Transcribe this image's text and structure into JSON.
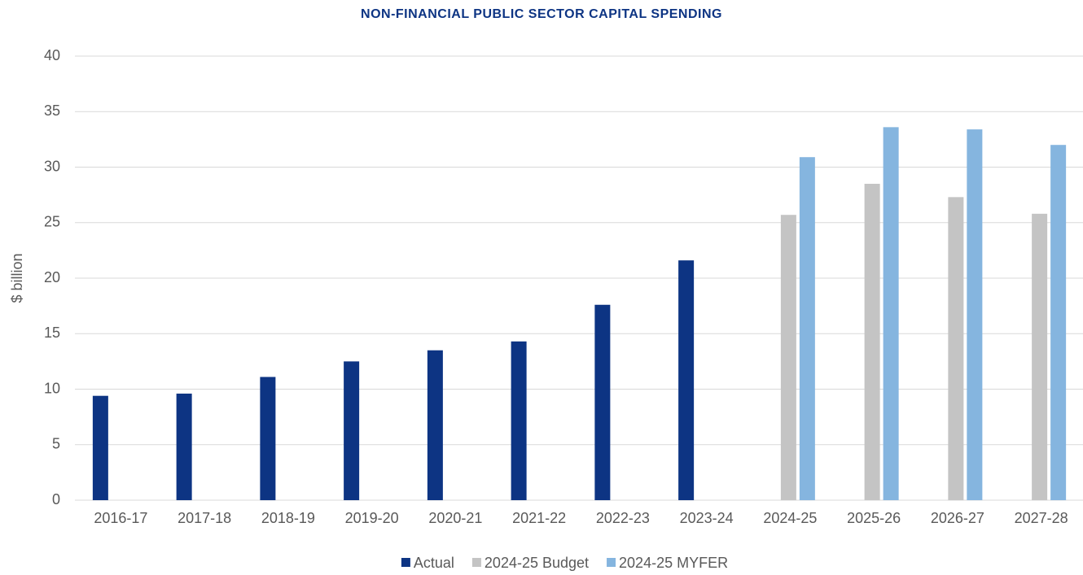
{
  "chart_data": {
    "type": "bar",
    "title": "NON-FINANCIAL PUBLIC SECTOR CAPITAL SPENDING",
    "y_label": "$ billion",
    "categories": [
      "2016-17",
      "2017-18",
      "2018-19",
      "2019-20",
      "2020-21",
      "2021-22",
      "2022-23",
      "2023-24",
      "2024-25",
      "2025-26",
      "2026-27",
      "2027-28"
    ],
    "series": [
      {
        "name": "Actual",
        "color": "#0d3483",
        "values": [
          9.4,
          9.6,
          11.1,
          12.5,
          13.5,
          14.3,
          17.6,
          21.6,
          null,
          null,
          null,
          null
        ]
      },
      {
        "name": "2024-25 Budget",
        "color": "#c4c4c4",
        "values": [
          null,
          null,
          null,
          null,
          null,
          null,
          null,
          null,
          25.7,
          28.5,
          27.3,
          25.8
        ]
      },
      {
        "name": "2024-25 MYFER",
        "color": "#85b5df",
        "values": [
          null,
          null,
          null,
          null,
          null,
          null,
          null,
          null,
          30.9,
          33.6,
          33.4,
          32.0
        ]
      }
    ],
    "ylim": [
      0,
      40
    ],
    "yticks": [
      0,
      5,
      10,
      15,
      20,
      25,
      30,
      35,
      40
    ],
    "grid": true,
    "legend": "bottom"
  }
}
